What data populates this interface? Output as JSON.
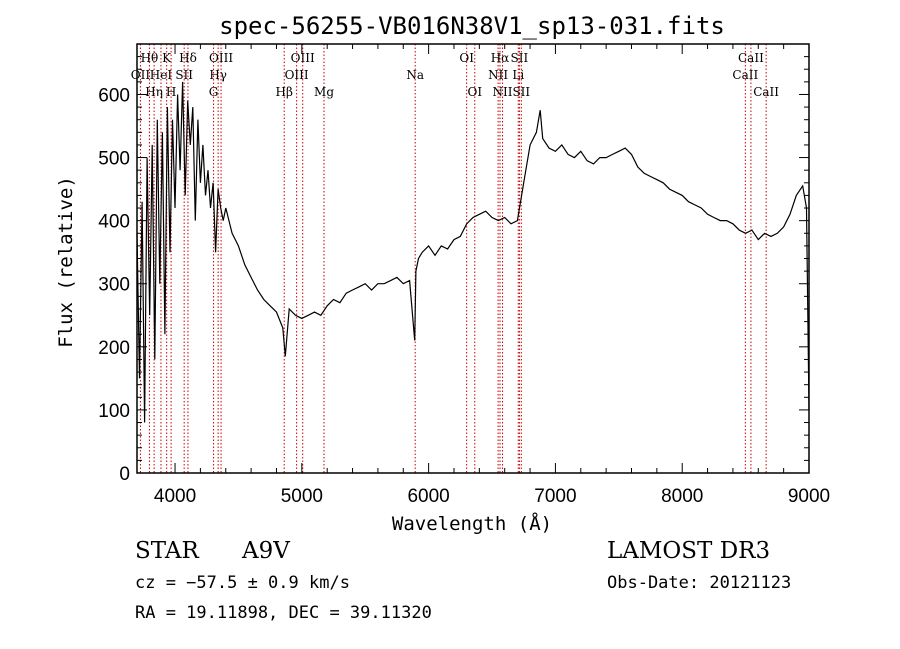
{
  "chart_data": {
    "type": "line",
    "title": "spec-56255-VB016N38V1_sp13-031.fits",
    "xlabel": "Wavelength (Å)",
    "ylabel": "Flux (relative)",
    "xlim": [
      3700,
      9000
    ],
    "ylim": [
      0,
      680
    ],
    "xticks": [
      4000,
      5000,
      6000,
      7000,
      8000,
      9000
    ],
    "yticks": [
      0,
      100,
      200,
      300,
      400,
      500,
      600
    ],
    "grid": false,
    "series": [
      {
        "color": "#000000",
        "x": [
          3700,
          3720,
          3740,
          3760,
          3780,
          3800,
          3820,
          3840,
          3860,
          3880,
          3900,
          3920,
          3940,
          3960,
          3980,
          4000,
          4020,
          4040,
          4060,
          4080,
          4100,
          4120,
          4140,
          4160,
          4180,
          4200,
          4220,
          4240,
          4260,
          4280,
          4300,
          4320,
          4340,
          4360,
          4380,
          4400,
          4450,
          4500,
          4550,
          4600,
          4650,
          4700,
          4750,
          4800,
          4850,
          4870,
          4900,
          4950,
          5000,
          5050,
          5100,
          5150,
          5200,
          5250,
          5300,
          5350,
          5400,
          5450,
          5500,
          5550,
          5600,
          5650,
          5700,
          5750,
          5800,
          5850,
          5890,
          5900,
          5920,
          5950,
          6000,
          6050,
          6100,
          6150,
          6200,
          6250,
          6300,
          6350,
          6400,
          6450,
          6500,
          6550,
          6600,
          6650,
          6700,
          6750,
          6800,
          6850,
          6880,
          6900,
          6950,
          7000,
          7050,
          7100,
          7150,
          7200,
          7250,
          7300,
          7350,
          7400,
          7450,
          7500,
          7550,
          7600,
          7650,
          7700,
          7750,
          7800,
          7850,
          7900,
          7950,
          8000,
          8050,
          8100,
          8150,
          8200,
          8250,
          8300,
          8350,
          8400,
          8450,
          8500,
          8550,
          8600,
          8650,
          8700,
          8750,
          8800,
          8850,
          8900,
          8950,
          8980,
          9000
        ],
        "values": [
          380,
          150,
          430,
          80,
          500,
          250,
          520,
          180,
          560,
          300,
          540,
          220,
          580,
          350,
          560,
          420,
          600,
          480,
          620,
          440,
          590,
          520,
          580,
          400,
          560,
          460,
          520,
          440,
          480,
          420,
          460,
          350,
          450,
          420,
          400,
          420,
          380,
          360,
          330,
          310,
          290,
          275,
          265,
          255,
          230,
          185,
          260,
          250,
          245,
          250,
          255,
          250,
          265,
          275,
          270,
          285,
          290,
          295,
          300,
          290,
          300,
          300,
          305,
          310,
          300,
          305,
          210,
          320,
          340,
          350,
          360,
          345,
          360,
          355,
          370,
          375,
          395,
          405,
          410,
          415,
          405,
          400,
          405,
          395,
          400,
          460,
          520,
          540,
          575,
          530,
          515,
          510,
          520,
          505,
          500,
          510,
          495,
          490,
          500,
          500,
          505,
          510,
          515,
          505,
          485,
          475,
          470,
          465,
          460,
          450,
          445,
          440,
          430,
          425,
          420,
          410,
          405,
          400,
          400,
          395,
          385,
          380,
          385,
          370,
          380,
          375,
          380,
          390,
          410,
          440,
          455,
          420,
          100
        ]
      }
    ],
    "line_markers": [
      {
        "label": "OII",
        "x": 3727,
        "row": 2
      },
      {
        "label": "Hθ",
        "x": 3798,
        "row": 1
      },
      {
        "label": "Hη",
        "x": 3835,
        "row": 3
      },
      {
        "label": "HeI",
        "x": 3889,
        "row": 2
      },
      {
        "label": "K",
        "x": 3934,
        "row": 1
      },
      {
        "label": "H",
        "x": 3969,
        "row": 3
      },
      {
        "label": "SII",
        "x": 4072,
        "row": 2
      },
      {
        "label": "Hδ",
        "x": 4102,
        "row": 1
      },
      {
        "label": "G",
        "x": 4304,
        "row": 3
      },
      {
        "label": "Hγ",
        "x": 4340,
        "row": 2
      },
      {
        "label": "OIII",
        "x": 4363,
        "row": 1
      },
      {
        "label": "Hβ",
        "x": 4861,
        "row": 3
      },
      {
        "label": "OIII",
        "x": 4959,
        "row": 2
      },
      {
        "label": "OIII",
        "x": 5007,
        "row": 1
      },
      {
        "label": "Mg",
        "x": 5175,
        "row": 3
      },
      {
        "label": "Na",
        "x": 5894,
        "row": 2
      },
      {
        "label": "OI",
        "x": 6300,
        "row": 1
      },
      {
        "label": "OI",
        "x": 6364,
        "row": 3
      },
      {
        "label": "NII",
        "x": 6548,
        "row": 2
      },
      {
        "label": "Hα",
        "x": 6563,
        "row": 1
      },
      {
        "label": "NII",
        "x": 6583,
        "row": 3
      },
      {
        "label": "Li",
        "x": 6707,
        "row": 2
      },
      {
        "label": "SII",
        "x": 6716,
        "row": 1
      },
      {
        "label": "SII",
        "x": 6731,
        "row": 3
      },
      {
        "label": "CaII",
        "x": 8498,
        "row": 2
      },
      {
        "label": "CaII",
        "x": 8542,
        "row": 1
      },
      {
        "label": "CaII",
        "x": 8662,
        "row": 3
      }
    ]
  },
  "info": {
    "object_type": "STAR",
    "subclass": "A9V",
    "survey": "LAMOST DR3",
    "cz": "cz = −57.5 ± 0.9 km/s",
    "obs_date": "Obs-Date: 20121123",
    "radec": "RA =  19.11898, DEC =  39.11320"
  },
  "colors": {
    "axis": "#000000",
    "spectrum": "#000000",
    "marker_line": "#cc0000"
  }
}
